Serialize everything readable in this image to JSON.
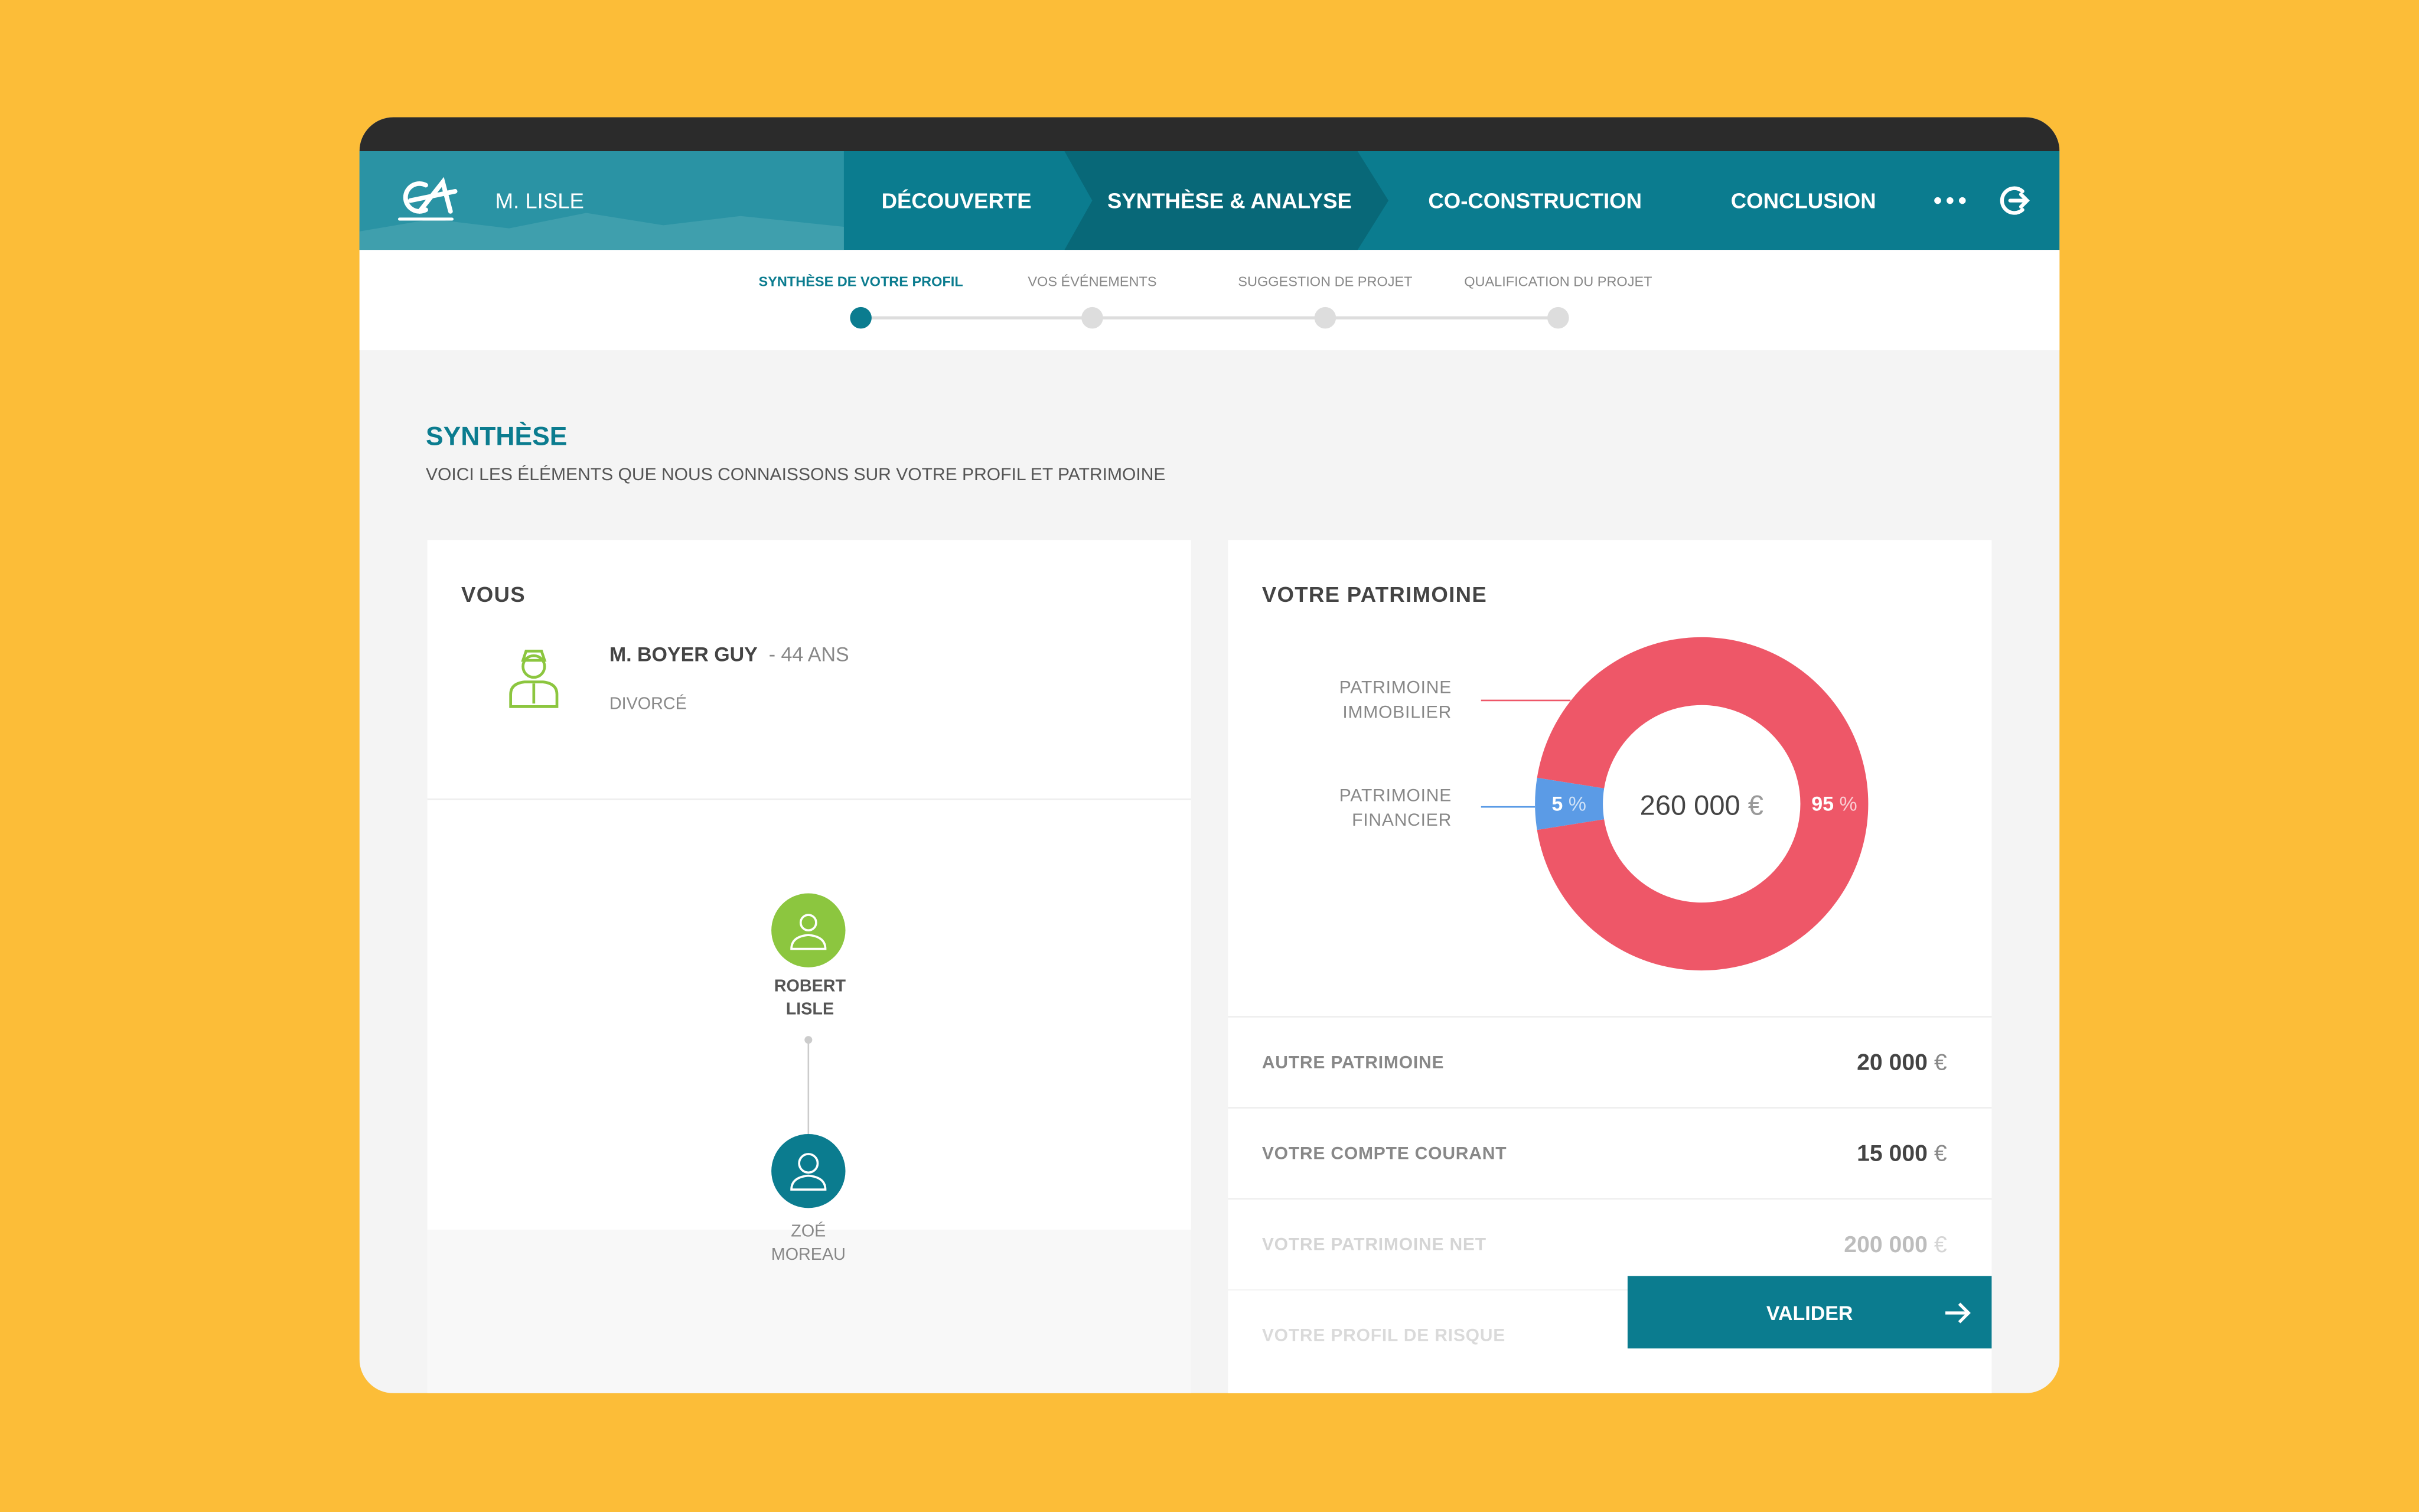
{
  "header": {
    "user": "M. LISLE",
    "tabs": [
      "DÉCOUVERTE",
      "SYNTHÈSE & ANALYSE",
      "CO-CONSTRUCTION",
      "CONCLUSION"
    ]
  },
  "steps": [
    "SYNTHÈSE DE VOTRE PROFIL",
    "VOS ÉVÉNEMENTS",
    "SUGGESTION DE PROJET",
    "QUALIFICATION DU PROJET"
  ],
  "section": {
    "title": "SYNTHÈSE",
    "subtitle": "VOICI LES ÉLÉMENTS QUE NOUS CONNAISSONS SUR VOTRE PROFIL ET PATRIMOINE"
  },
  "profile": {
    "title": "VOUS",
    "name": "M. BOYER GUY",
    "age": "- 44 ANS",
    "status": "DIVORCÉ"
  },
  "family": [
    {
      "first": "ROBERT",
      "last": "LISLE"
    },
    {
      "first": "ZOÉ",
      "last": "MOREAU"
    }
  ],
  "patrimoine": {
    "title": "VOTRE PATRIMOINE",
    "total": "260 000",
    "currency": "€",
    "segments": [
      {
        "label_lines": [
          "PATRIMOINE",
          "IMMOBILIER"
        ],
        "value": 95,
        "unit": "%",
        "color": "#ee5768"
      },
      {
        "label_lines": [
          "PATRIMOINE",
          "FINANCIER"
        ],
        "value": 5,
        "unit": "%",
        "color": "#5b9be6"
      }
    ]
  },
  "rows": [
    {
      "label": "AUTRE PATRIMOINE",
      "amount": "20 000"
    },
    {
      "label": "VOTRE COMPTE COURANT",
      "amount": "15 000"
    },
    {
      "label": "VOTRE PATRIMOINE NET",
      "amount": "200 000"
    },
    {
      "label": "VOTRE PROFIL DE RISQUE"
    }
  ],
  "button": "VALIDER"
}
